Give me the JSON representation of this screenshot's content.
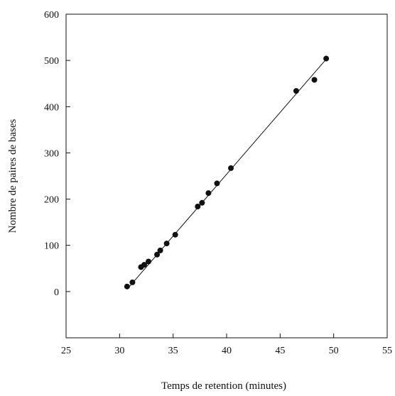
{
  "chart_data": {
    "type": "scatter",
    "title": "",
    "xlabel": "Temps de retention (minutes)",
    "ylabel": "Nombre de paires de bases",
    "xlim": [
      25,
      55
    ],
    "ylim": [
      -100,
      600
    ],
    "xticks": [
      25,
      30,
      35,
      40,
      45,
      50,
      55
    ],
    "yticks": [
      0,
      100,
      200,
      300,
      400,
      500,
      600
    ],
    "grid": false,
    "legend": "none",
    "series": [
      {
        "points": [
          {
            "x": 30.7,
            "y": 11
          },
          {
            "x": 31.2,
            "y": 20
          },
          {
            "x": 32.0,
            "y": 53
          },
          {
            "x": 32.3,
            "y": 58
          },
          {
            "x": 32.7,
            "y": 65
          },
          {
            "x": 33.5,
            "y": 80
          },
          {
            "x": 33.8,
            "y": 89
          },
          {
            "x": 34.4,
            "y": 104
          },
          {
            "x": 35.2,
            "y": 123
          },
          {
            "x": 37.3,
            "y": 184
          },
          {
            "x": 37.7,
            "y": 192
          },
          {
            "x": 38.3,
            "y": 213
          },
          {
            "x": 39.1,
            "y": 234
          },
          {
            "x": 40.4,
            "y": 267
          },
          {
            "x": 46.5,
            "y": 434
          },
          {
            "x": 48.2,
            "y": 458
          },
          {
            "x": 49.3,
            "y": 504
          }
        ]
      }
    ],
    "fit_line": {
      "x_start": 30.7,
      "y_start": 5,
      "x_end": 49.5,
      "y_end": 508
    },
    "colors": {
      "points": "#111111",
      "line": "#111111",
      "axes": "#111111"
    }
  }
}
